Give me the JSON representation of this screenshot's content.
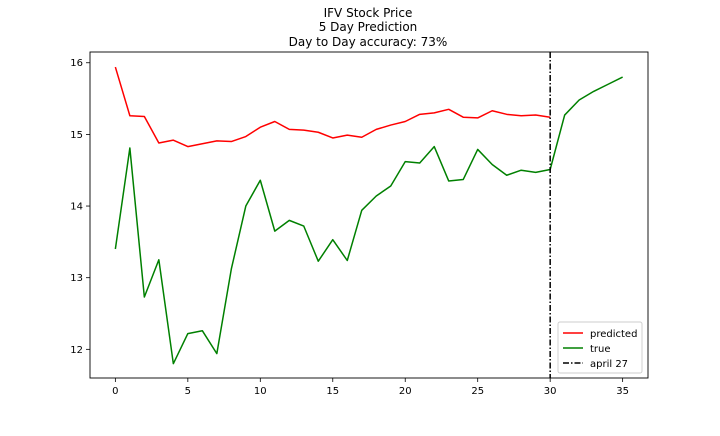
{
  "chart_data": {
    "type": "line",
    "title_lines": [
      "IFV Stock Price",
      "5 Day Prediction",
      "Day to Day accuracy: 73%"
    ],
    "xlabel": "",
    "ylabel": "",
    "xlim": [
      -1.75,
      36.75
    ],
    "ylim": [
      11.6,
      16.15
    ],
    "xticks": [
      0,
      5,
      10,
      15,
      20,
      25,
      30,
      35
    ],
    "yticks": [
      12,
      13,
      14,
      15,
      16
    ],
    "grid": false,
    "legend_position": "lower-right",
    "series": [
      {
        "name": "predicted",
        "color": "#ff0000",
        "x": [
          0,
          1,
          2,
          3,
          4,
          5,
          6,
          7,
          8,
          9,
          10,
          11,
          12,
          13,
          14,
          15,
          16,
          17,
          18,
          19,
          20,
          21,
          22,
          23,
          24,
          25,
          26,
          27,
          28,
          29,
          30
        ],
        "y": [
          15.94,
          15.26,
          15.25,
          14.88,
          14.92,
          14.83,
          14.87,
          14.91,
          14.9,
          14.97,
          15.1,
          15.18,
          15.07,
          15.06,
          15.03,
          14.95,
          14.99,
          14.96,
          15.07,
          15.13,
          15.18,
          15.28,
          15.3,
          15.35,
          15.24,
          15.23,
          15.33,
          15.28,
          15.26,
          15.27,
          15.24
        ]
      },
      {
        "name": "true",
        "color": "#008000",
        "x": [
          0,
          1,
          2,
          3,
          4,
          5,
          6,
          7,
          8,
          9,
          10,
          11,
          12,
          13,
          14,
          15,
          16,
          17,
          18,
          19,
          20,
          21,
          22,
          23,
          24,
          25,
          26,
          27,
          28,
          29,
          30,
          31,
          32,
          33,
          34,
          35
        ],
        "y": [
          13.4,
          14.81,
          12.73,
          13.25,
          11.8,
          12.22,
          12.26,
          11.94,
          13.12,
          14.0,
          14.36,
          13.65,
          13.8,
          13.72,
          13.23,
          13.53,
          13.24,
          13.94,
          14.14,
          14.28,
          14.62,
          14.6,
          14.83,
          14.35,
          14.37,
          14.79,
          14.58,
          14.43,
          14.5,
          14.47,
          14.51,
          15.27,
          15.48,
          15.6,
          15.7,
          15.8
        ]
      }
    ],
    "vline": {
      "x": 30,
      "name": "april 27",
      "color": "#000000",
      "style": "dash-dot"
    }
  }
}
